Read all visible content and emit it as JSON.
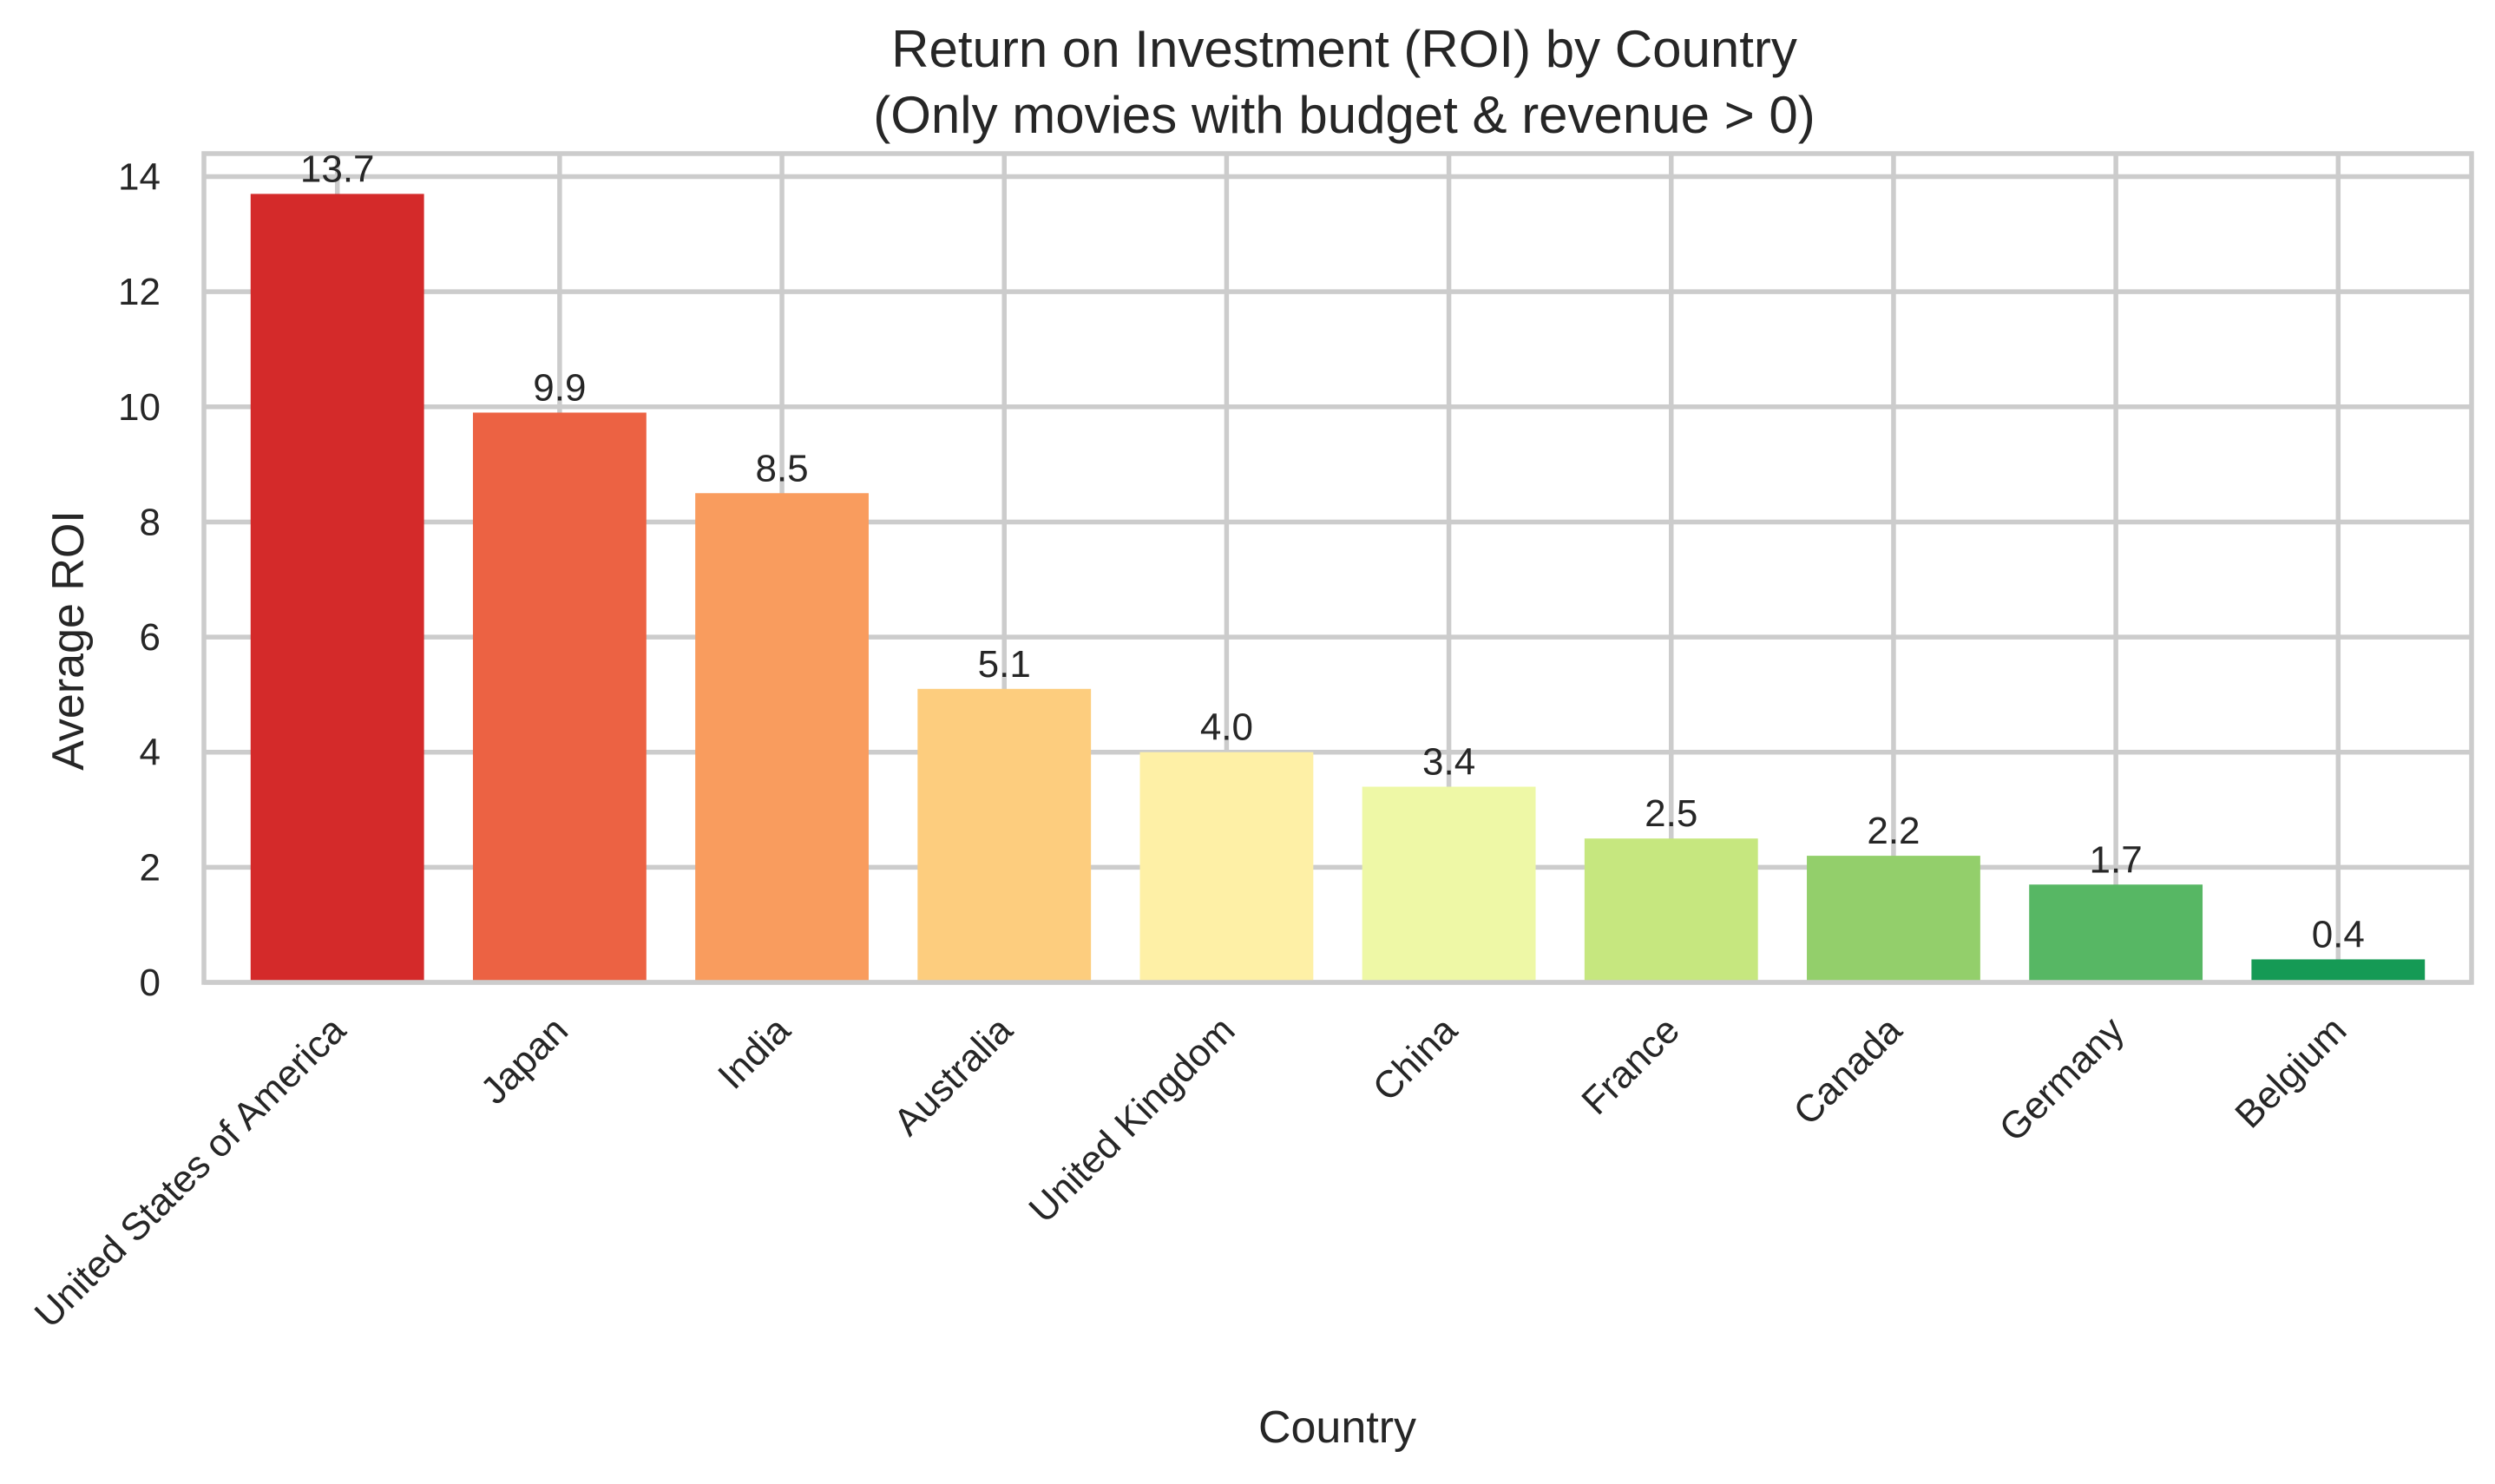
{
  "chart_data": {
    "type": "bar",
    "title": "Return on Investment (ROI) by Country",
    "subtitle": "(Only movies with budget & revenue > 0)",
    "xlabel": "Country",
    "ylabel": "Average ROI",
    "categories": [
      "United States of America",
      "Japan",
      "India",
      "Australia",
      "United Kingdom",
      "China",
      "France",
      "Canada",
      "Germany",
      "Belgium"
    ],
    "values": [
      13.7,
      9.9,
      8.5,
      5.1,
      4.0,
      3.4,
      2.5,
      2.2,
      1.7,
      0.4
    ],
    "value_labels": [
      "13.7",
      "9.9",
      "8.5",
      "5.1",
      "4.0",
      "3.4",
      "2.5",
      "2.2",
      "1.7",
      "0.4"
    ],
    "colors": [
      "#d42a2a",
      "#ec6243",
      "#f99c5e",
      "#fdcd7e",
      "#fef0a6",
      "#eef8a6",
      "#c6e77f",
      "#93cf6b",
      "#57b764",
      "#159a55"
    ],
    "ylim": [
      0,
      14.4
    ],
    "yticks": [
      0,
      2,
      4,
      6,
      8,
      10,
      12,
      14
    ],
    "ytick_labels": [
      "0",
      "2",
      "4",
      "6",
      "8",
      "10",
      "12",
      "14"
    ],
    "grid": true,
    "xtick_rotation": 45
  }
}
